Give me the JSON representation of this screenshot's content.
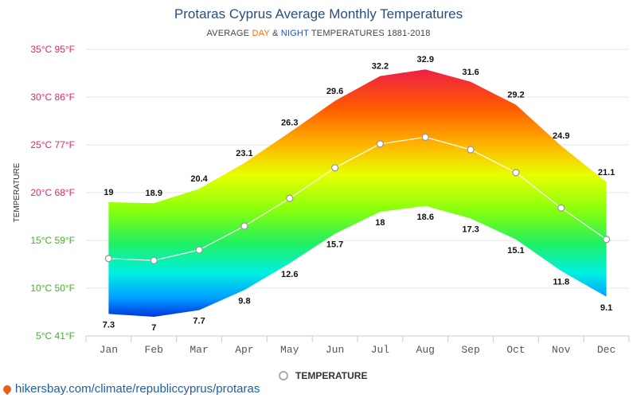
{
  "header": {
    "title": "Protaras Cyprus Average Monthly Temperatures",
    "subtitle_prefix": "AVERAGE",
    "subtitle_day": "DAY",
    "subtitle_amp": "&",
    "subtitle_night": "NIGHT",
    "subtitle_suffix": "TEMPERATURES 1881-2018"
  },
  "legend": {
    "label": "TEMPERATURE"
  },
  "footer": {
    "link_text": "hikersbay.com/climate/republiccyprus/protaras"
  },
  "chart_data": {
    "type": "area",
    "title": "Protaras Cyprus Average Monthly Temperatures",
    "ylabel": "TEMPERATURE",
    "categories": [
      "Jan",
      "Feb",
      "Mar",
      "Apr",
      "May",
      "Jun",
      "Jul",
      "Aug",
      "Sep",
      "Oct",
      "Nov",
      "Dec"
    ],
    "ylim": [
      5,
      35
    ],
    "yticks": [
      5,
      10,
      15,
      20,
      25,
      30,
      35
    ],
    "ytick_labels": [
      "5°C 41°F",
      "10°C 50°F",
      "15°C 59°F",
      "20°C 68°F",
      "25°C 77°F",
      "30°C 86°F",
      "35°C 95°F"
    ],
    "ytick_colors": [
      "#44b02a",
      "#44b02a",
      "#44b02a",
      "#e0286a",
      "#e0286a",
      "#e0286a",
      "#e0286a"
    ],
    "grid": true,
    "day_values": [
      19,
      18.9,
      20.4,
      23.1,
      26.3,
      29.6,
      32.2,
      32.9,
      31.6,
      29.2,
      24.9,
      21.1
    ],
    "night_values": [
      7.3,
      7,
      7.7,
      9.8,
      12.6,
      15.7,
      18,
      18.6,
      17.3,
      15.1,
      11.8,
      9.1
    ],
    "series": [
      {
        "name": "TEMPERATURE",
        "values": [
          13.1,
          12.9,
          14,
          16.5,
          19.4,
          22.6,
          25.1,
          25.8,
          24.5,
          22.1,
          18.4,
          15.1
        ]
      }
    ],
    "colors": {
      "day_label": "#ff6a00",
      "night_label": "#1f4fd8",
      "line": "#ffffff",
      "marker_stroke": "#999999"
    }
  }
}
